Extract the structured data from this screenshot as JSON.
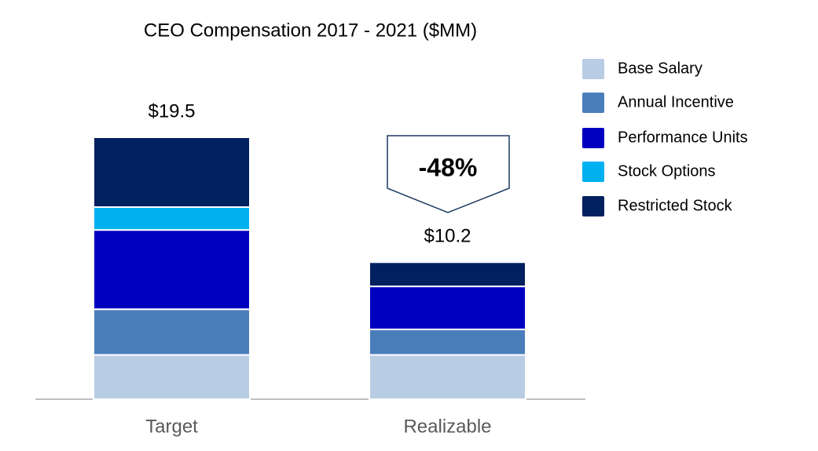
{
  "chart_data": {
    "type": "stacked_bar",
    "title": "CEO Compensation 2017 - 2021 ($MM)",
    "categories": [
      "Target",
      "Realizable"
    ],
    "series": [
      {
        "name": "Base Salary",
        "color": "#b8cce4",
        "values": [
          3.3,
          3.3
        ]
      },
      {
        "name": "Annual Incentive",
        "color": "#4a7ebb",
        "values": [
          3.4,
          1.9
        ]
      },
      {
        "name": "Performance Units",
        "color": "#0000c0",
        "values": [
          5.9,
          3.2
        ]
      },
      {
        "name": "Stock Options",
        "color": "#00b0f0",
        "values": [
          1.7,
          0
        ]
      },
      {
        "name": "Restricted Stock",
        "color": "#002060",
        "values": [
          5.2,
          1.8
        ]
      }
    ],
    "totals": [
      19.5,
      10.2
    ],
    "total_labels": [
      "$19.5",
      "$10.2"
    ],
    "annotation": "-48%",
    "ylim": [
      0,
      20
    ]
  }
}
